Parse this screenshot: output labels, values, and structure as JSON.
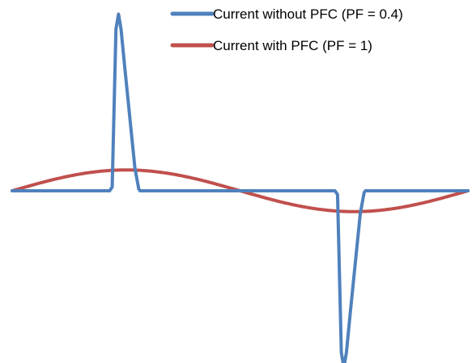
{
  "chart_data": {
    "type": "line",
    "title": "",
    "xlabel": "",
    "ylabel": "",
    "grid": false,
    "axes_visible": false,
    "legend_position": "top-right",
    "xlim": [
      0,
      360
    ],
    "ylim": [
      -1.0,
      1.0
    ],
    "series": [
      {
        "name": "Current without PFC (PF = 0.4)",
        "color": "#4F81BD",
        "x": [
          0,
          77,
          79,
          80,
          82,
          84,
          86,
          89,
          93,
          97,
          100,
          101,
          103,
          106,
          180,
          255,
          257,
          258,
          260,
          262,
          264,
          267,
          271,
          275,
          278,
          279,
          281,
          284,
          360
        ],
        "y": [
          0,
          0,
          0.02,
          0.3,
          0.87,
          0.95,
          0.87,
          0.66,
          0.39,
          0.12,
          0.01,
          0,
          0,
          0,
          0,
          0,
          -0.02,
          -0.3,
          -0.87,
          -0.95,
          -0.87,
          -0.66,
          -0.39,
          -0.12,
          -0.01,
          0,
          0,
          0,
          0
        ]
      },
      {
        "name": "Current with PFC (PF = 1)",
        "color": "#C0504D",
        "x": [
          0,
          30,
          60,
          90,
          120,
          150,
          180,
          210,
          240,
          270,
          300,
          330,
          360
        ],
        "y": [
          0,
          0.056,
          0.097,
          0.112,
          0.097,
          0.056,
          0,
          -0.056,
          -0.097,
          -0.112,
          -0.097,
          -0.056,
          0
        ]
      }
    ]
  }
}
